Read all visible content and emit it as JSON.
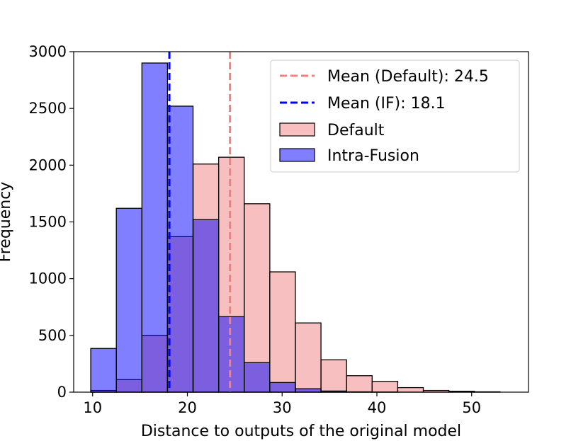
{
  "chart_data": {
    "type": "histogram",
    "title": "",
    "xlabel": "Distance to outputs of the original model",
    "ylabel": "Frequency",
    "xlim": [
      8,
      56
    ],
    "ylim": [
      0,
      3000
    ],
    "xticks": [
      "10",
      "20",
      "30",
      "40",
      "50"
    ],
    "yticks": [
      "0",
      "500",
      "1000",
      "1500",
      "2000",
      "2500",
      "3000"
    ],
    "grid": false,
    "legend_position": "upper right",
    "bin_edges": [
      9.8,
      12.5,
      15.2,
      17.9,
      20.6,
      23.3,
      26.0,
      28.7,
      31.4,
      34.1,
      36.8,
      39.5,
      42.2,
      44.9,
      47.6,
      50.3,
      53.0
    ],
    "series": [
      {
        "name": "Default",
        "color": "#f08080",
        "values": [
          15,
          110,
          500,
          1370,
          2010,
          2070,
          1660,
          1060,
          610,
          285,
          145,
          95,
          40,
          15,
          8,
          3
        ]
      },
      {
        "name": "Intra-Fusion",
        "color": "#0000ff",
        "values": [
          385,
          1620,
          2900,
          2520,
          1520,
          665,
          260,
          85,
          30,
          10,
          3,
          1,
          0,
          0,
          0,
          0
        ]
      }
    ],
    "mean_lines": [
      {
        "name": "Mean (Default): 24.5",
        "value": 24.5,
        "color": "#f08080"
      },
      {
        "name": "Mean (IF): 18.1",
        "value": 18.1,
        "color": "#0000ff"
      }
    ]
  }
}
